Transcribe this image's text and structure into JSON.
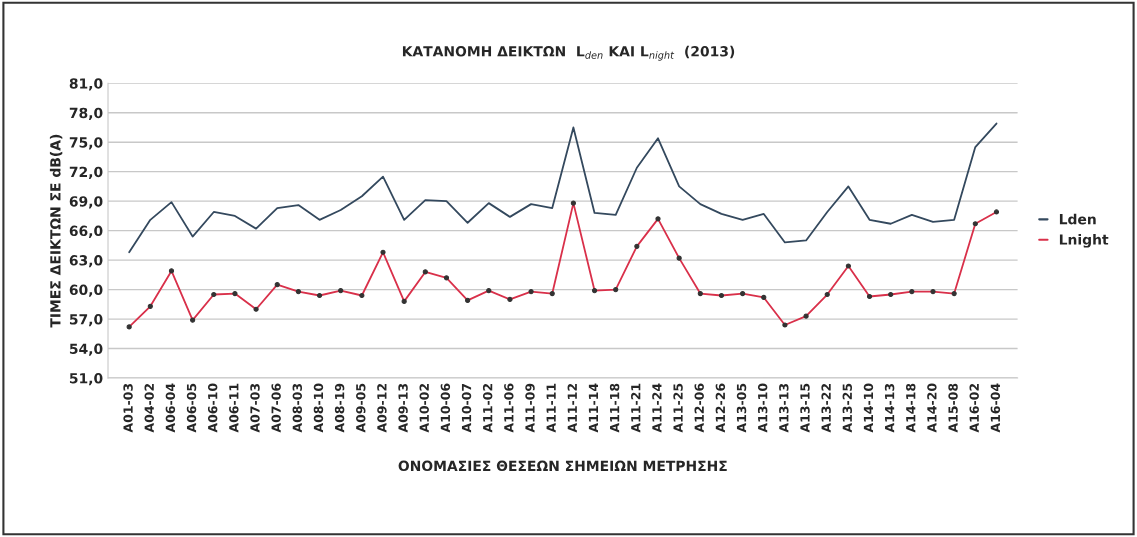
{
  "chart_data": {
    "type": "line",
    "title": "ΚΑΤΑΝΟΜΗ ΔΕΙΚΤΩΝ  L$_{den}$ ΚΑΙ L$_{night}$  (2013)",
    "xlabel": "ΟΝΟΜΑΣΙΕΣ ΘΕΣΕΩΝ ΣΗΜΕΙΩΝ ΜΕΤΡΗΣΗΣ",
    "ylabel": "ΤΙΜΕΣ ΔΕΙΚΤΩΝ ΣΕ dB(A)",
    "categories": [
      "A01-03",
      "A04-02",
      "A06-04",
      "A06-05",
      "A06-10",
      "A06-11",
      "A07-03",
      "A07-06",
      "A08-03",
      "A08-10",
      "A08-19",
      "A09-05",
      "A09-12",
      "A09-13",
      "A10-02",
      "A10-06",
      "A10-07",
      "A11-02",
      "A11-06",
      "A11-09",
      "A11-11",
      "A11-12",
      "A11-14",
      "A11-18",
      "A11-21",
      "A11-24",
      "A11-25",
      "A12-06",
      "A12-26",
      "A13-05",
      "A13-10",
      "A13-13",
      "A13-15",
      "A13-22",
      "A13-25",
      "A14-10",
      "A14-13",
      "A14-18",
      "A14-20",
      "A15-08",
      "A16-02",
      "A16-04"
    ],
    "series": [
      {
        "name": "Lden",
        "color": "#34495e",
        "marker": "none",
        "values": [
          63.8,
          67.1,
          68.9,
          65.4,
          67.9,
          67.5,
          66.2,
          68.3,
          68.6,
          67.1,
          68.1,
          69.5,
          71.5,
          67.1,
          69.1,
          69.0,
          66.8,
          68.8,
          67.4,
          68.7,
          68.3,
          76.5,
          67.8,
          67.6,
          72.4,
          75.4,
          70.5,
          68.7,
          67.7,
          67.1,
          67.7,
          64.8,
          65.0,
          67.9,
          70.5,
          67.1,
          66.7,
          67.6,
          66.9,
          67.1,
          74.5,
          76.9
        ]
      },
      {
        "name": "Lnight",
        "color": "#d9304a",
        "marker": "circle",
        "values": [
          56.2,
          58.3,
          61.9,
          56.9,
          59.5,
          59.6,
          58.0,
          60.5,
          59.8,
          59.4,
          59.9,
          59.4,
          63.8,
          58.8,
          61.8,
          61.2,
          58.9,
          59.9,
          59.0,
          59.8,
          59.6,
          68.8,
          59.9,
          60.0,
          64.4,
          67.2,
          63.2,
          59.6,
          59.4,
          59.6,
          59.2,
          56.4,
          57.3,
          59.5,
          62.4,
          59.3,
          59.5,
          59.8,
          59.8,
          59.6,
          66.7,
          67.9
        ]
      }
    ],
    "ylim": [
      51,
      81
    ],
    "yticks": [
      {
        "value": 51,
        "label": "51,0"
      },
      {
        "value": 54,
        "label": "54,0"
      },
      {
        "value": 57,
        "label": "57,0"
      },
      {
        "value": 60,
        "label": "60,0"
      },
      {
        "value": 63,
        "label": "63,0"
      },
      {
        "value": 66,
        "label": "66,0"
      },
      {
        "value": 69,
        "label": "69,0"
      },
      {
        "value": 72,
        "label": "72,0"
      },
      {
        "value": 75,
        "label": "75,0"
      },
      {
        "value": 78,
        "label": "78,0"
      },
      {
        "value": 81,
        "label": "81,0"
      }
    ],
    "grid": "y",
    "legend": "right"
  }
}
